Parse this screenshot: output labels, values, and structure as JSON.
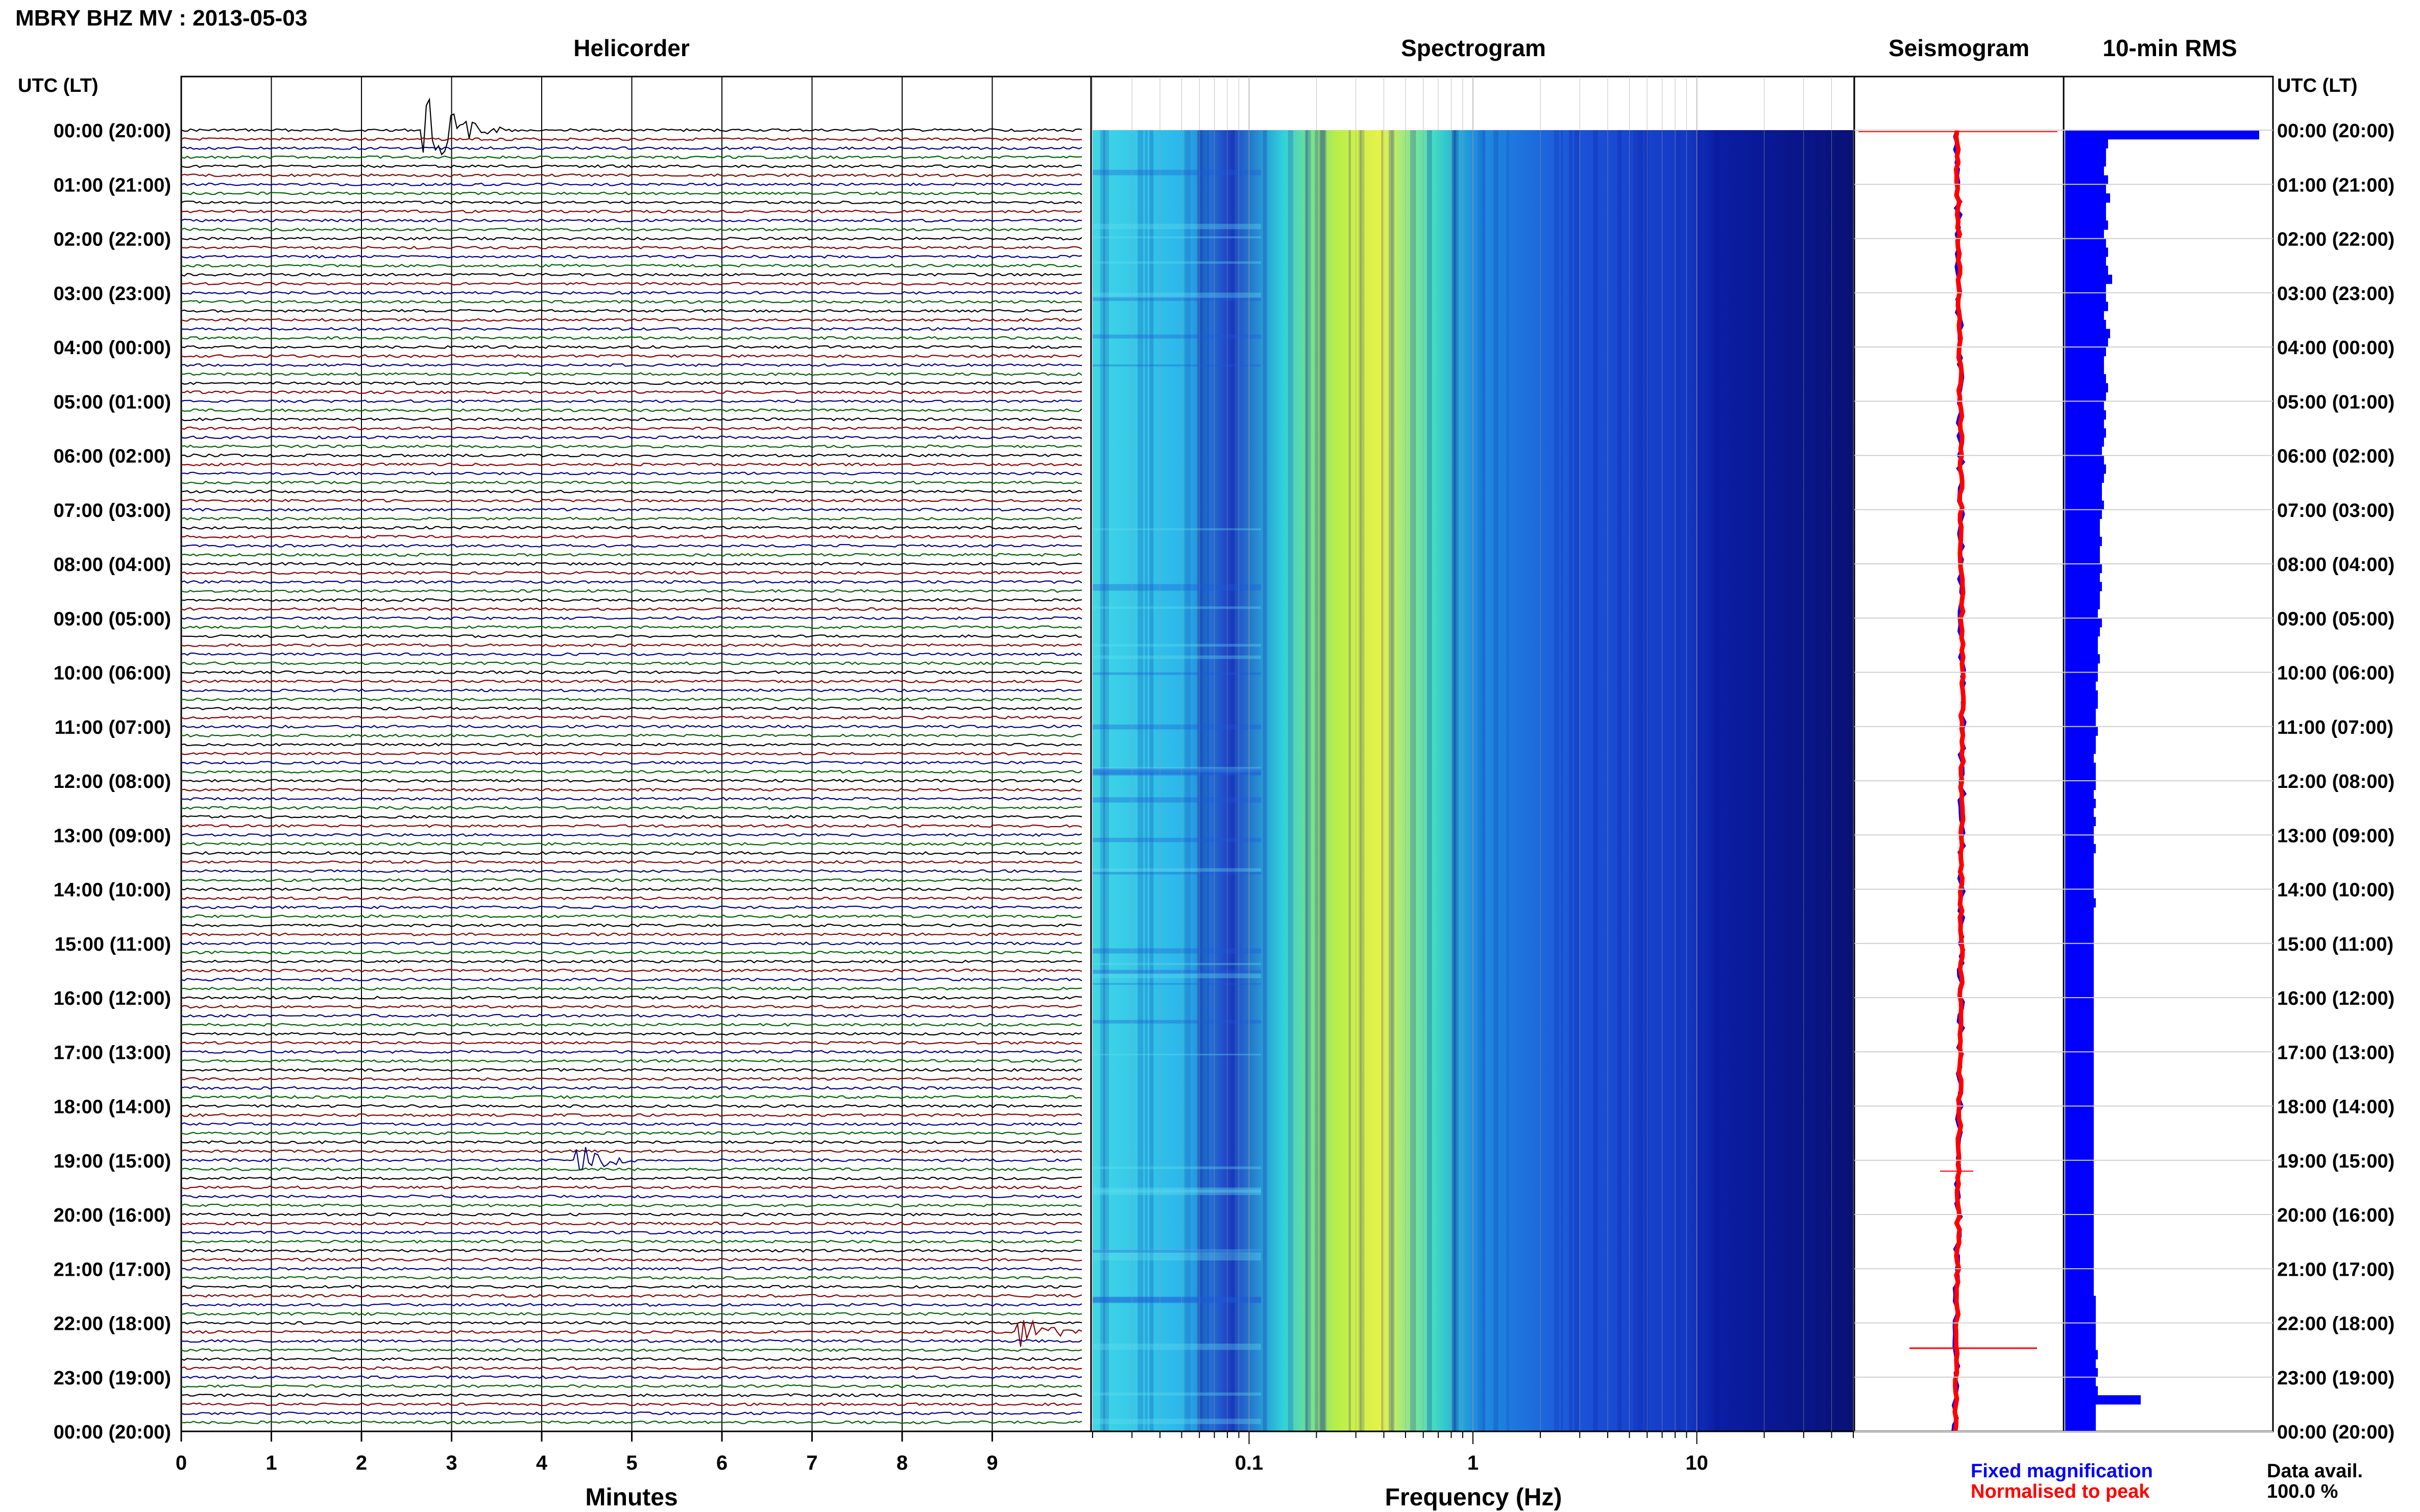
{
  "figure_title": "MBRY BHZ MV : 2013-05-03",
  "panel_titles": {
    "helicorder": "Helicorder",
    "spectrogram": "Spectrogram",
    "seismogram": "Seismogram",
    "rms": "10-min RMS"
  },
  "axis_header": {
    "left": "UTC (LT)",
    "right": "UTC (LT)"
  },
  "footer": {
    "fixed_magnification": "Fixed magnification",
    "normalised_to_peak": "Normalised to peak",
    "data_avail_label": "Data avail.",
    "data_avail_value": "100.0 %"
  },
  "colors": {
    "trace_black": "#000000",
    "trace_red": "#8b0000",
    "trace_blue": "#00008b",
    "trace_green": "#006400",
    "fixed_magnification": "#0000ff",
    "normalised_to_peak": "#ff0000",
    "rms_bar": "#0000ff"
  },
  "chart_data": [
    {
      "type": "line",
      "title": "Helicorder",
      "xlabel": "Minutes",
      "x_ticks": [
        "0",
        "1",
        "2",
        "3",
        "4",
        "5",
        "6",
        "7",
        "8",
        "9"
      ],
      "xlim": [
        0,
        10
      ],
      "y_tick_labels": [
        "00:00 (20:00)",
        "01:00 (21:00)",
        "02:00 (22:00)",
        "03:00 (23:00)",
        "04:00 (00:00)",
        "05:00 (01:00)",
        "06:00 (02:00)",
        "07:00 (03:00)",
        "08:00 (04:00)",
        "09:00 (05:00)",
        "10:00 (06:00)",
        "11:00 (07:00)",
        "12:00 (08:00)",
        "13:00 (09:00)",
        "14:00 (10:00)",
        "15:00 (11:00)",
        "16:00 (12:00)",
        "17:00 (13:00)",
        "18:00 (14:00)",
        "19:00 (15:00)",
        "20:00 (16:00)",
        "21:00 (17:00)",
        "22:00 (18:00)",
        "23:00 (19:00)",
        "00:00 (20:00)"
      ],
      "line_interval_min": 10,
      "line_color_cycle": [
        "black",
        "red",
        "blue",
        "green"
      ],
      "events": [
        {
          "time_utc": "00:00",
          "minute": 2.7,
          "color": "black"
        },
        {
          "time_utc": "19:00",
          "minute": 4.4,
          "color": "green"
        },
        {
          "time_utc": "22:10",
          "minute": 9.3,
          "color": "blue"
        }
      ]
    },
    {
      "type": "heatmap",
      "title": "Spectrogram",
      "xlabel": "Frequency (Hz)",
      "x_scale": "log",
      "x_ticks": [
        0.1,
        1,
        10
      ],
      "x_tick_labels": [
        "0.1",
        "1",
        "10"
      ],
      "xlim": [
        0.02,
        50
      ],
      "peak_energy_hz": [
        0.2,
        0.5
      ],
      "note": "energy drops sharply above ~20 Hz"
    },
    {
      "type": "line",
      "title": "Seismogram",
      "series": [
        {
          "name": "Fixed magnification"
        },
        {
          "name": "Normalised to peak"
        }
      ]
    },
    {
      "type": "bar",
      "title": "10-min RMS",
      "orientation": "horizontal",
      "relative_values": [
        0.95,
        0.21,
        0.2,
        0.2,
        0.19,
        0.21,
        0.2,
        0.22,
        0.2,
        0.2,
        0.21,
        0.19,
        0.2,
        0.21,
        0.2,
        0.21,
        0.23,
        0.2,
        0.2,
        0.21,
        0.19,
        0.2,
        0.22,
        0.21,
        0.2,
        0.19,
        0.19,
        0.2,
        0.21,
        0.2,
        0.19,
        0.2,
        0.19,
        0.2,
        0.19,
        0.18,
        0.19,
        0.2,
        0.19,
        0.18,
        0.18,
        0.19,
        0.18,
        0.17,
        0.17,
        0.18,
        0.17,
        0.17,
        0.18,
        0.17,
        0.18,
        0.17,
        0.17,
        0.16,
        0.18,
        0.17,
        0.16,
        0.16,
        0.17,
        0.16,
        0.16,
        0.15,
        0.16,
        0.16,
        0.15,
        0.15,
        0.16,
        0.15,
        0.15,
        0.14,
        0.15,
        0.15,
        0.15,
        0.14,
        0.15,
        0.14,
        0.15,
        0.14,
        0.14,
        0.15,
        0.14,
        0.14,
        0.14,
        0.14,
        0.14,
        0.15,
        0.14,
        0.14,
        0.14,
        0.14,
        0.14,
        0.14,
        0.14,
        0.14,
        0.14,
        0.14,
        0.14,
        0.14,
        0.14,
        0.14,
        0.14,
        0.14,
        0.14,
        0.14,
        0.14,
        0.14,
        0.14,
        0.14,
        0.14,
        0.14,
        0.14,
        0.14,
        0.14,
        0.14,
        0.14,
        0.14,
        0.14,
        0.14,
        0.14,
        0.14,
        0.14,
        0.14,
        0.14,
        0.14,
        0.14,
        0.14,
        0.14,
        0.14,
        0.14,
        0.15,
        0.15,
        0.15,
        0.15,
        0.15,
        0.15,
        0.16,
        0.15,
        0.16,
        0.15,
        0.16,
        0.37,
        0.15,
        0.15,
        0.15
      ]
    }
  ]
}
